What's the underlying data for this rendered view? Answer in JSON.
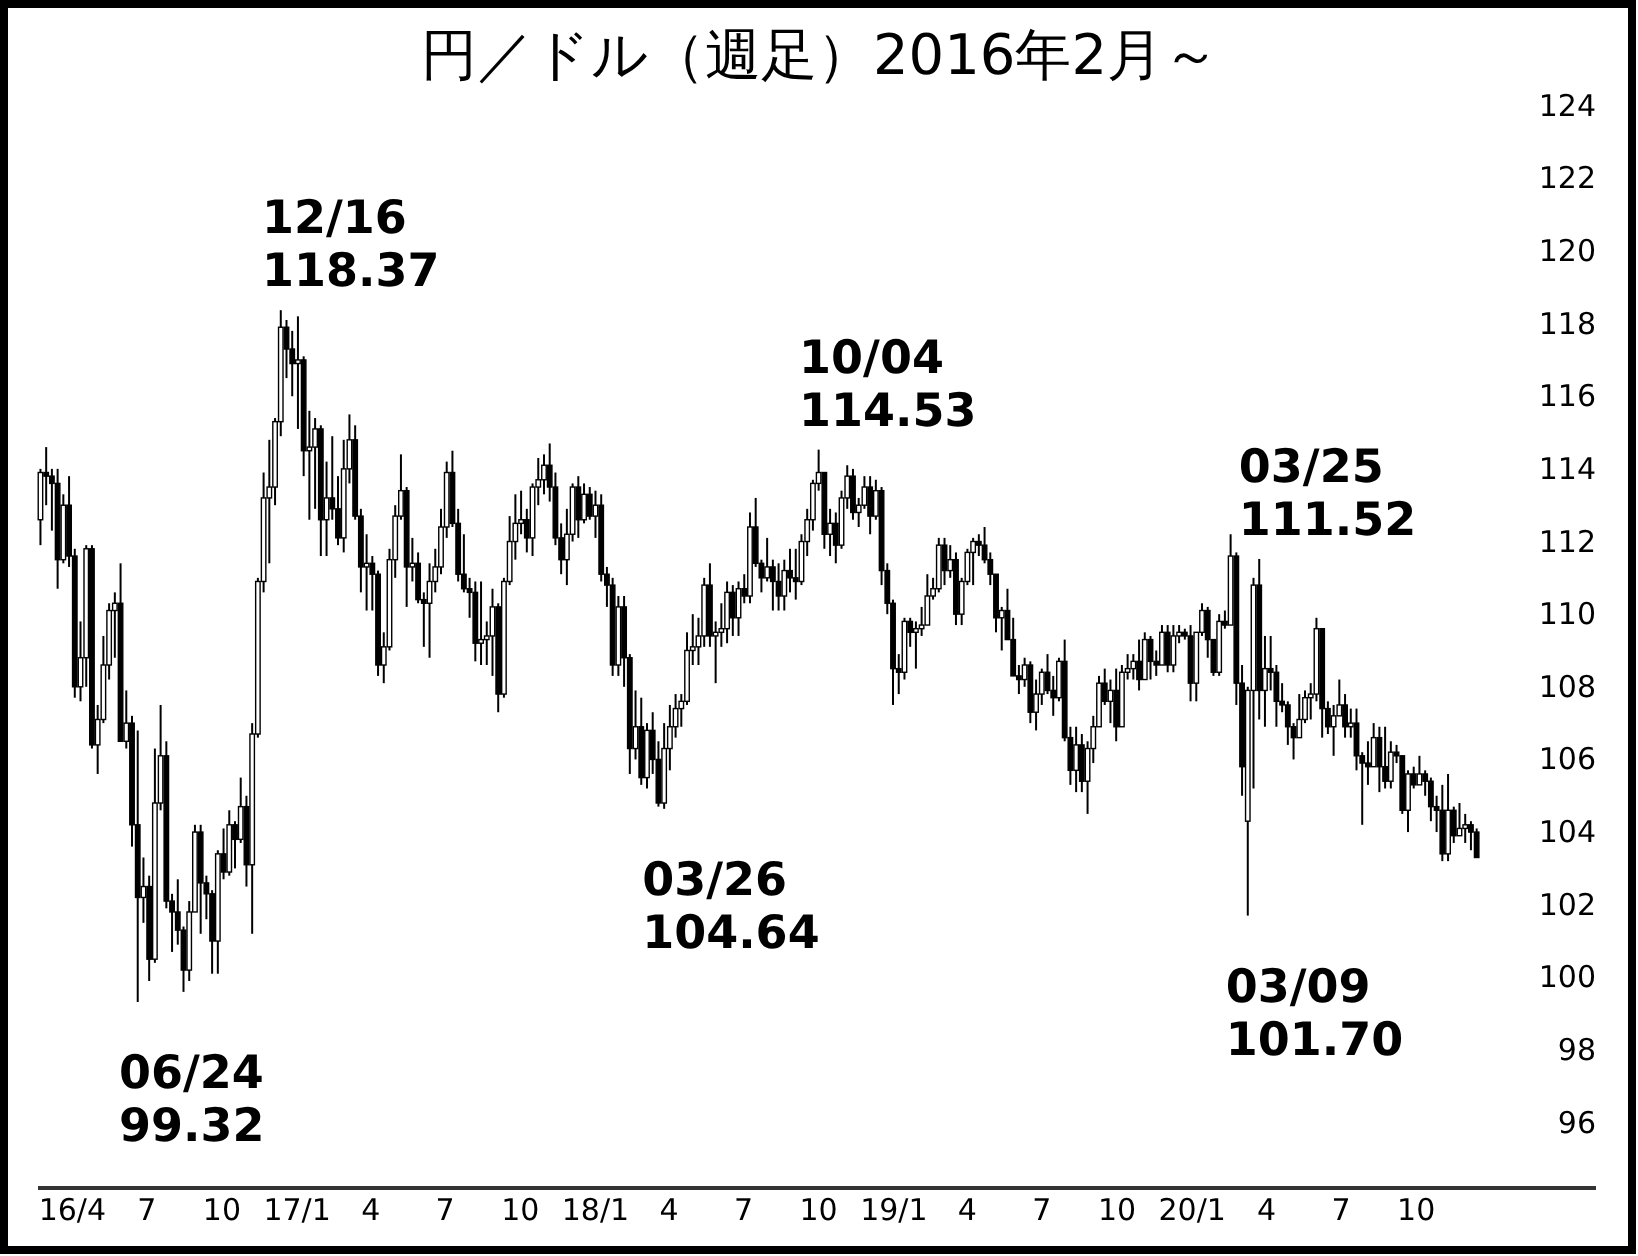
{
  "chart_data": {
    "type": "candlestick",
    "title": "円／ドル（週足）2016年2月～",
    "color": "#000000",
    "x": [
      "2016-02-22",
      "2016-02-29",
      "2016-03-07",
      "2016-03-14",
      "2016-03-21",
      "2016-03-28",
      "2016-04-04",
      "2016-04-11",
      "2016-04-18",
      "2016-04-25",
      "2016-05-02",
      "2016-05-09",
      "2016-05-16",
      "2016-05-23",
      "2016-05-30",
      "2016-06-06",
      "2016-06-13",
      "2016-06-20",
      "2016-06-27",
      "2016-07-04",
      "2016-07-11",
      "2016-07-18",
      "2016-07-25",
      "2016-08-01",
      "2016-08-08",
      "2016-08-15",
      "2016-08-22",
      "2016-08-29",
      "2016-09-05",
      "2016-09-12",
      "2016-09-19",
      "2016-09-26",
      "2016-10-03",
      "2016-10-10",
      "2016-10-17",
      "2016-10-24",
      "2016-10-31",
      "2016-11-07",
      "2016-11-14",
      "2016-11-21",
      "2016-11-28",
      "2016-12-05",
      "2016-12-12",
      "2016-12-19",
      "2016-12-26",
      "2017-01-02",
      "2017-01-09",
      "2017-01-16",
      "2017-01-23",
      "2017-01-30",
      "2017-02-06",
      "2017-02-13",
      "2017-02-20",
      "2017-02-27",
      "2017-03-06",
      "2017-03-13",
      "2017-03-20",
      "2017-03-27",
      "2017-04-03",
      "2017-04-10",
      "2017-04-17",
      "2017-04-24",
      "2017-05-01",
      "2017-05-08",
      "2017-05-15",
      "2017-05-22",
      "2017-05-29",
      "2017-06-05",
      "2017-06-12",
      "2017-06-19",
      "2017-06-26",
      "2017-07-03",
      "2017-07-10",
      "2017-07-17",
      "2017-07-24",
      "2017-07-31",
      "2017-08-07",
      "2017-08-14",
      "2017-08-21",
      "2017-08-28",
      "2017-09-04",
      "2017-09-11",
      "2017-09-18",
      "2017-09-25",
      "2017-10-02",
      "2017-10-09",
      "2017-10-16",
      "2017-10-23",
      "2017-10-30",
      "2017-11-06",
      "2017-11-13",
      "2017-11-20",
      "2017-11-27",
      "2017-12-04",
      "2017-12-11",
      "2017-12-18",
      "2017-12-25",
      "2018-01-01",
      "2018-01-08",
      "2018-01-15",
      "2018-01-22",
      "2018-01-29",
      "2018-02-05",
      "2018-02-12",
      "2018-02-19",
      "2018-02-26",
      "2018-03-05",
      "2018-03-12",
      "2018-03-19",
      "2018-03-26",
      "2018-04-02",
      "2018-04-09",
      "2018-04-16",
      "2018-04-23",
      "2018-04-30",
      "2018-05-07",
      "2018-05-14",
      "2018-05-21",
      "2018-05-28",
      "2018-06-04",
      "2018-06-11",
      "2018-06-18",
      "2018-06-25",
      "2018-07-02",
      "2018-07-09",
      "2018-07-16",
      "2018-07-23",
      "2018-07-30",
      "2018-08-06",
      "2018-08-13",
      "2018-08-20",
      "2018-08-27",
      "2018-09-03",
      "2018-09-10",
      "2018-09-17",
      "2018-09-24",
      "2018-10-01",
      "2018-10-08",
      "2018-10-15",
      "2018-10-22",
      "2018-10-29",
      "2018-11-05",
      "2018-11-12",
      "2018-11-19",
      "2018-11-26",
      "2018-12-03",
      "2018-12-10",
      "2018-12-17",
      "2018-12-24",
      "2018-12-31",
      "2019-01-07",
      "2019-01-14",
      "2019-01-21",
      "2019-01-28",
      "2019-02-04",
      "2019-02-11",
      "2019-02-18",
      "2019-02-25",
      "2019-03-04",
      "2019-03-11",
      "2019-03-18",
      "2019-03-25",
      "2019-04-01",
      "2019-04-08",
      "2019-04-15",
      "2019-04-22",
      "2019-04-29",
      "2019-05-06",
      "2019-05-13",
      "2019-05-20",
      "2019-05-27",
      "2019-06-03",
      "2019-06-10",
      "2019-06-17",
      "2019-06-24",
      "2019-07-01",
      "2019-07-08",
      "2019-07-15",
      "2019-07-22",
      "2019-07-29",
      "2019-08-05",
      "2019-08-12",
      "2019-08-19",
      "2019-08-26",
      "2019-09-02",
      "2019-09-09",
      "2019-09-16",
      "2019-09-23",
      "2019-09-30",
      "2019-10-07",
      "2019-10-14",
      "2019-10-21",
      "2019-10-28",
      "2019-11-04",
      "2019-11-11",
      "2019-11-18",
      "2019-11-25",
      "2019-12-02",
      "2019-12-09",
      "2019-12-16",
      "2019-12-23",
      "2019-12-30",
      "2020-01-06",
      "2020-01-13",
      "2020-01-20",
      "2020-01-27",
      "2020-02-03",
      "2020-02-10",
      "2020-02-17",
      "2020-02-24",
      "2020-03-02",
      "2020-03-09",
      "2020-03-16",
      "2020-03-23",
      "2020-03-30",
      "2020-04-06",
      "2020-04-13",
      "2020-04-20",
      "2020-04-27",
      "2020-05-04",
      "2020-05-11",
      "2020-05-18",
      "2020-05-25",
      "2020-06-01",
      "2020-06-08",
      "2020-06-15",
      "2020-06-22",
      "2020-06-29",
      "2020-07-06",
      "2020-07-13",
      "2020-07-20",
      "2020-07-27",
      "2020-08-03",
      "2020-08-10",
      "2020-08-17",
      "2020-08-24",
      "2020-08-31",
      "2020-09-07",
      "2020-09-14",
      "2020-09-21",
      "2020-09-28",
      "2020-10-05",
      "2020-10-12",
      "2020-10-19",
      "2020-10-26",
      "2020-11-02",
      "2020-11-09",
      "2020-11-16",
      "2020-11-23",
      "2020-11-30",
      "2020-12-07",
      "2020-12-14"
    ],
    "ohlc": [
      [
        112.6,
        114.0,
        111.9,
        113.9
      ],
      [
        113.9,
        114.6,
        113.0,
        113.8
      ],
      [
        113.8,
        114.0,
        112.3,
        113.6
      ],
      [
        113.6,
        114.0,
        110.7,
        111.5
      ],
      [
        111.5,
        113.3,
        111.4,
        113.0
      ],
      [
        113.0,
        113.8,
        111.3,
        111.6
      ],
      [
        111.6,
        111.8,
        107.7,
        108.0
      ],
      [
        108.0,
        109.8,
        107.6,
        108.8
      ],
      [
        108.8,
        111.9,
        108.0,
        111.8
      ],
      [
        111.8,
        111.9,
        106.3,
        106.4
      ],
      [
        106.4,
        107.5,
        105.6,
        107.1
      ],
      [
        107.1,
        109.4,
        107.0,
        108.6
      ],
      [
        108.6,
        110.3,
        108.2,
        110.1
      ],
      [
        110.1,
        110.6,
        108.8,
        110.3
      ],
      [
        110.3,
        111.4,
        106.5,
        106.5
      ],
      [
        106.5,
        107.9,
        106.3,
        107.0
      ],
      [
        107.0,
        107.2,
        103.6,
        104.2
      ],
      [
        104.2,
        106.8,
        99.32,
        102.2
      ],
      [
        102.2,
        103.3,
        101.5,
        102.5
      ],
      [
        102.5,
        102.8,
        99.9,
        100.5
      ],
      [
        100.5,
        106.3,
        100.4,
        104.8
      ],
      [
        104.8,
        107.5,
        104.6,
        106.1
      ],
      [
        106.1,
        106.5,
        101.9,
        102.1
      ],
      [
        102.1,
        102.3,
        100.7,
        101.8
      ],
      [
        101.8,
        102.7,
        100.9,
        101.3
      ],
      [
        101.3,
        101.4,
        99.6,
        100.2
      ],
      [
        100.2,
        102.1,
        99.9,
        101.8
      ],
      [
        101.8,
        104.2,
        101.8,
        104.0
      ],
      [
        104.0,
        104.2,
        101.2,
        102.6
      ],
      [
        102.6,
        102.8,
        101.6,
        102.3
      ],
      [
        102.3,
        102.4,
        100.1,
        101.0
      ],
      [
        101.0,
        103.5,
        100.1,
        103.4
      ],
      [
        103.4,
        104.1,
        102.7,
        102.9
      ],
      [
        102.9,
        104.6,
        102.8,
        104.2
      ],
      [
        104.2,
        104.3,
        103.0,
        103.8
      ],
      [
        103.8,
        105.5,
        103.7,
        104.7
      ],
      [
        104.7,
        105.0,
        102.5,
        103.1
      ],
      [
        103.1,
        107.0,
        101.2,
        106.7
      ],
      [
        106.7,
        111.0,
        106.6,
        110.9
      ],
      [
        110.9,
        113.9,
        110.6,
        113.2
      ],
      [
        113.2,
        114.8,
        111.4,
        113.5
      ],
      [
        113.5,
        115.4,
        113.0,
        115.3
      ],
      [
        115.3,
        118.37,
        114.9,
        117.9
      ],
      [
        117.9,
        118.1,
        116.5,
        117.3
      ],
      [
        117.3,
        117.8,
        116.0,
        116.9
      ],
      [
        116.9,
        118.2,
        115.1,
        117.0
      ],
      [
        117.0,
        117.1,
        113.8,
        114.5
      ],
      [
        114.5,
        115.6,
        112.6,
        114.6
      ],
      [
        114.6,
        115.4,
        112.9,
        115.1
      ],
      [
        115.1,
        115.2,
        111.6,
        112.6
      ],
      [
        112.6,
        114.2,
        111.6,
        113.2
      ],
      [
        113.2,
        114.9,
        112.6,
        112.9
      ],
      [
        112.9,
        113.8,
        111.9,
        112.1
      ],
      [
        112.1,
        114.8,
        111.7,
        114.0
      ],
      [
        114.0,
        115.5,
        113.6,
        114.8
      ],
      [
        114.8,
        115.2,
        112.6,
        112.7
      ],
      [
        112.7,
        112.9,
        110.6,
        111.3
      ],
      [
        111.3,
        112.2,
        110.1,
        111.4
      ],
      [
        111.4,
        111.6,
        110.1,
        111.1
      ],
      [
        111.1,
        111.2,
        108.3,
        108.6
      ],
      [
        108.6,
        109.5,
        108.1,
        109.1
      ],
      [
        109.1,
        111.8,
        109.0,
        111.5
      ],
      [
        111.5,
        113.0,
        111.0,
        112.7
      ],
      [
        112.7,
        114.4,
        112.6,
        113.4
      ],
      [
        113.4,
        113.5,
        110.2,
        111.3
      ],
      [
        111.3,
        112.1,
        110.9,
        111.4
      ],
      [
        111.4,
        111.7,
        110.3,
        110.4
      ],
      [
        110.4,
        110.6,
        109.1,
        110.3
      ],
      [
        110.3,
        111.4,
        108.8,
        110.9
      ],
      [
        110.9,
        111.8,
        110.6,
        111.3
      ],
      [
        111.3,
        112.9,
        111.1,
        112.4
      ],
      [
        112.4,
        114.2,
        112.1,
        113.9
      ],
      [
        113.9,
        114.5,
        112.4,
        112.5
      ],
      [
        112.5,
        112.9,
        110.9,
        111.1
      ],
      [
        111.1,
        112.2,
        110.6,
        110.7
      ],
      [
        110.7,
        111.0,
        109.9,
        110.6
      ],
      [
        110.6,
        110.9,
        108.7,
        109.2
      ],
      [
        109.2,
        110.9,
        108.6,
        109.3
      ],
      [
        109.3,
        109.8,
        108.6,
        109.4
      ],
      [
        109.4,
        110.7,
        108.3,
        110.2
      ],
      [
        110.2,
        110.3,
        107.3,
        107.8
      ],
      [
        107.8,
        111.0,
        107.7,
        110.9
      ],
      [
        110.9,
        112.7,
        110.8,
        112.0
      ],
      [
        112.0,
        113.3,
        111.5,
        112.5
      ],
      [
        112.5,
        113.4,
        112.2,
        112.6
      ],
      [
        112.6,
        112.9,
        111.7,
        112.1
      ],
      [
        112.1,
        113.6,
        111.6,
        113.5
      ],
      [
        113.5,
        114.3,
        113.0,
        113.7
      ],
      [
        113.7,
        114.4,
        113.3,
        114.1
      ],
      [
        114.1,
        114.7,
        113.1,
        113.5
      ],
      [
        113.5,
        113.9,
        111.9,
        112.1
      ],
      [
        112.1,
        112.5,
        111.1,
        111.5
      ],
      [
        111.5,
        112.9,
        110.8,
        112.2
      ],
      [
        112.2,
        113.6,
        112.0,
        113.5
      ],
      [
        113.5,
        113.8,
        112.1,
        112.6
      ],
      [
        112.6,
        113.6,
        112.5,
        113.3
      ],
      [
        113.3,
        113.5,
        112.6,
        112.7
      ],
      [
        112.7,
        113.4,
        112.1,
        113.0
      ],
      [
        113.0,
        113.3,
        110.9,
        111.1
      ],
      [
        111.1,
        111.3,
        110.2,
        110.8
      ],
      [
        110.8,
        111.0,
        108.3,
        108.6
      ],
      [
        108.6,
        110.5,
        108.3,
        110.2
      ],
      [
        110.2,
        110.5,
        108.0,
        108.8
      ],
      [
        108.8,
        108.9,
        105.6,
        106.3
      ],
      [
        106.3,
        107.9,
        106.0,
        106.9
      ],
      [
        106.9,
        107.7,
        105.3,
        105.5
      ],
      [
        105.5,
        107.0,
        105.2,
        106.8
      ],
      [
        106.8,
        107.3,
        105.6,
        106.0
      ],
      [
        106.0,
        106.5,
        104.7,
        104.8
      ],
      [
        104.8,
        107.0,
        104.64,
        106.3
      ],
      [
        106.3,
        107.5,
        105.7,
        106.9
      ],
      [
        106.9,
        107.8,
        106.6,
        107.4
      ],
      [
        107.4,
        107.8,
        106.9,
        107.6
      ],
      [
        107.6,
        109.5,
        107.5,
        109.0
      ],
      [
        109.0,
        110.0,
        108.6,
        109.1
      ],
      [
        109.1,
        109.9,
        108.6,
        109.4
      ],
      [
        109.4,
        111.0,
        109.1,
        110.8
      ],
      [
        110.8,
        111.4,
        109.1,
        109.4
      ],
      [
        109.4,
        109.8,
        108.1,
        109.5
      ],
      [
        109.5,
        110.3,
        109.1,
        109.6
      ],
      [
        109.6,
        110.9,
        109.2,
        110.6
      ],
      [
        110.6,
        110.8,
        109.4,
        109.9
      ],
      [
        109.9,
        110.9,
        109.4,
        110.7
      ],
      [
        110.7,
        111.1,
        110.3,
        110.5
      ],
      [
        110.5,
        112.8,
        110.3,
        112.4
      ],
      [
        112.4,
        113.2,
        111.3,
        111.4
      ],
      [
        111.4,
        111.5,
        110.6,
        111.0
      ],
      [
        111.0,
        112.1,
        110.9,
        111.3
      ],
      [
        111.3,
        111.5,
        110.1,
        110.9
      ],
      [
        110.9,
        111.4,
        110.1,
        110.5
      ],
      [
        110.5,
        111.5,
        110.1,
        111.2
      ],
      [
        111.2,
        111.8,
        110.6,
        111.0
      ],
      [
        111.0,
        111.8,
        110.4,
        110.9
      ],
      [
        110.9,
        112.2,
        110.8,
        112.0
      ],
      [
        112.0,
        112.9,
        111.6,
        112.6
      ],
      [
        112.6,
        113.7,
        112.3,
        113.6
      ],
      [
        113.6,
        114.53,
        113.4,
        113.9
      ],
      [
        113.9,
        113.9,
        111.8,
        112.2
      ],
      [
        112.2,
        112.9,
        111.6,
        112.5
      ],
      [
        112.5,
        112.8,
        111.4,
        111.9
      ],
      [
        111.9,
        113.4,
        111.8,
        113.2
      ],
      [
        113.2,
        114.1,
        112.9,
        113.8
      ],
      [
        113.8,
        114.0,
        112.6,
        112.8
      ],
      [
        112.8,
        113.2,
        112.4,
        113.0
      ],
      [
        113.0,
        113.8,
        112.9,
        113.5
      ],
      [
        113.5,
        113.8,
        112.2,
        112.7
      ],
      [
        112.7,
        113.7,
        112.6,
        113.4
      ],
      [
        113.4,
        113.5,
        110.8,
        111.2
      ],
      [
        111.2,
        111.4,
        110.0,
        110.3
      ],
      [
        110.3,
        110.4,
        107.5,
        108.5
      ],
      [
        108.5,
        108.9,
        107.8,
        108.4
      ],
      [
        108.4,
        109.9,
        108.2,
        109.8
      ],
      [
        109.8,
        109.9,
        109.1,
        109.5
      ],
      [
        109.5,
        109.8,
        108.5,
        109.6
      ],
      [
        109.6,
        110.2,
        109.4,
        109.7
      ],
      [
        109.7,
        111.1,
        109.7,
        110.5
      ],
      [
        110.5,
        111.0,
        110.4,
        110.7
      ],
      [
        110.7,
        112.1,
        110.6,
        111.9
      ],
      [
        111.9,
        112.1,
        110.8,
        111.2
      ],
      [
        111.2,
        111.9,
        111.0,
        111.5
      ],
      [
        111.5,
        111.7,
        109.7,
        110.0
      ],
      [
        110.0,
        111.0,
        109.7,
        110.9
      ],
      [
        110.9,
        111.8,
        110.8,
        111.7
      ],
      [
        111.7,
        112.1,
        110.8,
        112.0
      ],
      [
        112.0,
        112.2,
        111.6,
        111.9
      ],
      [
        111.9,
        112.4,
        111.4,
        111.5
      ],
      [
        111.5,
        111.7,
        110.8,
        111.1
      ],
      [
        111.1,
        111.1,
        109.5,
        109.9
      ],
      [
        109.9,
        110.2,
        109.0,
        110.1
      ],
      [
        110.1,
        110.7,
        109.3,
        109.3
      ],
      [
        109.3,
        109.9,
        108.3,
        108.3
      ],
      [
        108.3,
        108.6,
        107.8,
        108.2
      ],
      [
        108.2,
        108.8,
        108.0,
        108.6
      ],
      [
        108.6,
        108.7,
        107.0,
        107.3
      ],
      [
        107.3,
        108.2,
        106.8,
        107.8
      ],
      [
        107.8,
        108.5,
        107.5,
        108.4
      ],
      [
        108.4,
        108.9,
        107.8,
        107.9
      ],
      [
        107.9,
        108.3,
        107.2,
        107.7
      ],
      [
        107.7,
        108.8,
        107.6,
        108.7
      ],
      [
        108.7,
        109.3,
        106.5,
        106.6
      ],
      [
        106.6,
        106.9,
        105.3,
        105.7
      ],
      [
        105.7,
        106.9,
        105.1,
        106.4
      ],
      [
        106.4,
        106.7,
        105.1,
        105.4
      ],
      [
        105.4,
        106.5,
        104.5,
        106.3
      ],
      [
        106.3,
        107.2,
        105.9,
        106.9
      ],
      [
        106.9,
        108.3,
        106.9,
        108.1
      ],
      [
        108.1,
        108.5,
        107.5,
        107.6
      ],
      [
        107.6,
        108.2,
        107.0,
        107.9
      ],
      [
        107.9,
        108.5,
        106.5,
        106.9
      ],
      [
        106.9,
        108.6,
        106.9,
        108.4
      ],
      [
        108.4,
        108.9,
        108.2,
        108.5
      ],
      [
        108.5,
        108.9,
        108.2,
        108.7
      ],
      [
        108.7,
        109.3,
        107.9,
        108.2
      ],
      [
        108.2,
        109.5,
        108.2,
        109.3
      ],
      [
        109.3,
        109.4,
        108.2,
        108.7
      ],
      [
        108.7,
        109.0,
        108.3,
        108.6
      ],
      [
        108.6,
        109.7,
        108.6,
        109.5
      ],
      [
        109.5,
        109.7,
        108.4,
        108.6
      ],
      [
        108.6,
        109.7,
        108.4,
        109.4
      ],
      [
        109.4,
        109.7,
        109.2,
        109.5
      ],
      [
        109.5,
        109.6,
        109.3,
        109.4
      ],
      [
        109.4,
        109.7,
        107.6,
        108.1
      ],
      [
        108.1,
        109.5,
        107.6,
        109.5
      ],
      [
        109.5,
        110.3,
        109.4,
        110.1
      ],
      [
        110.1,
        110.2,
        108.8,
        109.3
      ],
      [
        109.3,
        109.3,
        108.3,
        108.4
      ],
      [
        108.4,
        110.0,
        108.3,
        109.8
      ],
      [
        109.8,
        110.1,
        109.6,
        109.7
      ],
      [
        109.7,
        112.2,
        109.7,
        111.6
      ],
      [
        111.6,
        111.7,
        107.5,
        108.1
      ],
      [
        108.1,
        108.6,
        105.0,
        105.8
      ],
      [
        104.3,
        108.0,
        101.7,
        107.9
      ],
      [
        107.9,
        111.0,
        105.2,
        110.8
      ],
      [
        110.8,
        111.52,
        107.1,
        107.9
      ],
      [
        107.9,
        109.4,
        106.9,
        108.5
      ],
      [
        108.5,
        109.4,
        107.9,
        108.4
      ],
      [
        108.4,
        108.6,
        106.9,
        107.6
      ],
      [
        107.6,
        108.1,
        107.3,
        107.5
      ],
      [
        107.5,
        107.6,
        106.4,
        106.9
      ],
      [
        106.9,
        107.0,
        106.0,
        106.6
      ],
      [
        106.6,
        107.8,
        106.6,
        107.1
      ],
      [
        107.1,
        107.9,
        107.0,
        107.7
      ],
      [
        107.7,
        108.1,
        107.1,
        107.8
      ],
      [
        107.8,
        109.9,
        107.6,
        109.6
      ],
      [
        109.6,
        109.6,
        106.6,
        107.4
      ],
      [
        107.4,
        107.6,
        106.7,
        106.9
      ],
      [
        106.9,
        107.5,
        106.1,
        107.2
      ],
      [
        107.2,
        108.2,
        107.2,
        107.5
      ],
      [
        107.5,
        107.8,
        106.6,
        106.9
      ],
      [
        106.9,
        107.4,
        106.6,
        107.0
      ],
      [
        107.0,
        107.4,
        105.7,
        106.1
      ],
      [
        106.1,
        106.2,
        104.2,
        105.9
      ],
      [
        105.9,
        106.5,
        105.3,
        105.8
      ],
      [
        105.8,
        107.0,
        105.8,
        106.6
      ],
      [
        106.6,
        106.9,
        105.1,
        105.8
      ],
      [
        105.8,
        106.9,
        105.2,
        105.4
      ],
      [
        105.4,
        106.5,
        105.2,
        106.2
      ],
      [
        106.2,
        106.4,
        105.9,
        106.1
      ],
      [
        106.1,
        106.1,
        104.5,
        104.6
      ],
      [
        104.6,
        105.7,
        104.0,
        105.6
      ],
      [
        105.6,
        105.8,
        105.2,
        105.3
      ],
      [
        105.3,
        106.1,
        105.3,
        105.6
      ],
      [
        105.6,
        105.7,
        105.0,
        105.4
      ],
      [
        105.4,
        105.5,
        104.3,
        104.7
      ],
      [
        104.7,
        105.0,
        104.0,
        104.6
      ],
      [
        104.6,
        105.3,
        103.2,
        103.4
      ],
      [
        103.4,
        105.6,
        103.2,
        104.6
      ],
      [
        104.6,
        104.7,
        103.7,
        103.9
      ],
      [
        103.9,
        104.8,
        103.9,
        104.1
      ],
      [
        104.1,
        104.5,
        103.7,
        104.2
      ],
      [
        104.2,
        104.3,
        103.5,
        104.0
      ],
      [
        104.0,
        104.1,
        103.3,
        103.3
      ]
    ],
    "xlim": [
      "2016-02-19",
      "2021-05-09"
    ],
    "xticks": [
      {
        "value": "2016-04-01",
        "label": "16/4"
      },
      {
        "value": "2016-07-01",
        "label": "7"
      },
      {
        "value": "2016-10-01",
        "label": "10"
      },
      {
        "value": "2017-01-01",
        "label": "17/1"
      },
      {
        "value": "2017-04-01",
        "label": "4"
      },
      {
        "value": "2017-07-01",
        "label": "7"
      },
      {
        "value": "2017-10-01",
        "label": "10"
      },
      {
        "value": "2018-01-01",
        "label": "18/1"
      },
      {
        "value": "2018-04-01",
        "label": "4"
      },
      {
        "value": "2018-07-01",
        "label": "7"
      },
      {
        "value": "2018-10-01",
        "label": "10"
      },
      {
        "value": "2019-01-01",
        "label": "19/1"
      },
      {
        "value": "2019-04-01",
        "label": "4"
      },
      {
        "value": "2019-07-01",
        "label": "7"
      },
      {
        "value": "2019-10-01",
        "label": "10"
      },
      {
        "value": "2020-01-01",
        "label": "20/1"
      },
      {
        "value": "2020-04-01",
        "label": "4"
      },
      {
        "value": "2020-07-01",
        "label": "7"
      },
      {
        "value": "2020-10-01",
        "label": "10"
      }
    ],
    "ylim": [
      94.2,
      126.8
    ],
    "yticks": [
      96,
      98,
      100,
      102,
      104,
      106,
      108,
      110,
      112,
      114,
      116,
      118,
      120,
      122,
      124
    ],
    "annotations": [
      {
        "text": "12/16\n118.37",
        "x": "2016-12-16",
        "y": 118.37
      },
      {
        "text": "06/24\n99.32",
        "x": "2016-06-24",
        "y": 99.32
      },
      {
        "text": "03/26\n104.64",
        "x": "2018-03-26",
        "y": 104.64
      },
      {
        "text": "10/04\n114.53",
        "x": "2018-10-04",
        "y": 114.53
      },
      {
        "text": "03/25\n111.52",
        "x": "2020-03-25",
        "y": 111.52
      },
      {
        "text": "03/09\n101.70",
        "x": "2020-03-09",
        "y": 101.7
      }
    ]
  }
}
